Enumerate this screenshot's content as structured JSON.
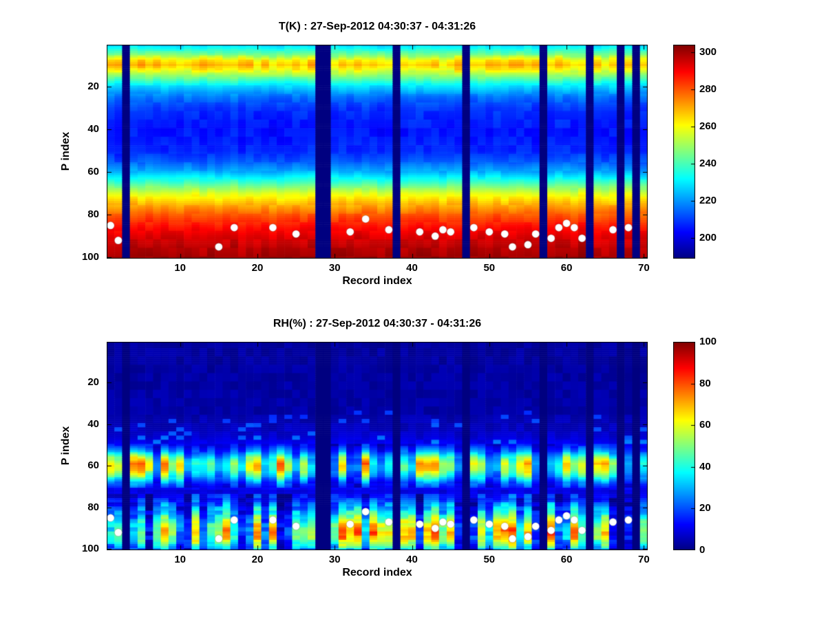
{
  "colors": {
    "background": "#ffffff",
    "text": "#000000",
    "missing_data": "#00008f",
    "dot": "#ffffff"
  },
  "chart_data": [
    {
      "type": "heatmap",
      "field": "temperature",
      "title": "T(K) : 27-Sep-2012 04:30:37 - 04:31:26",
      "xlabel": "Record index",
      "ylabel": "P index",
      "x_range": [
        1,
        70
      ],
      "y_range": [
        1,
        100
      ],
      "y_direction": "down",
      "x_ticks": [
        10,
        20,
        30,
        40,
        50,
        60,
        70
      ],
      "y_ticks": [
        20,
        40,
        60,
        80,
        100
      ],
      "colormap": "jet",
      "clim": [
        189,
        304
      ],
      "colorbar_ticks": [
        200,
        220,
        240,
        260,
        280,
        300
      ],
      "missing_records": [
        3,
        28,
        29,
        38,
        47,
        57,
        63,
        67,
        69
      ],
      "profile_p": [
        1,
        5,
        8,
        10,
        12,
        15,
        20,
        25,
        30,
        40,
        50,
        55,
        60,
        65,
        70,
        75,
        80,
        85,
        90,
        95,
        100
      ],
      "profile_values": [
        228,
        245,
        263,
        268,
        261,
        248,
        228,
        216,
        209,
        205,
        207,
        213,
        223,
        239,
        257,
        269,
        279,
        287,
        293,
        297,
        300
      ],
      "cell_noise_amp": 5,
      "column_noise_amp": 3,
      "band_variability": {
        "p_min": 6,
        "p_max": 13,
        "amp": 10
      },
      "dot_color": "#ffffff",
      "surface_dots": [
        [
          1,
          85
        ],
        [
          2,
          92
        ],
        [
          15,
          95
        ],
        [
          17,
          86
        ],
        [
          22,
          86
        ],
        [
          25,
          89
        ],
        [
          32,
          88
        ],
        [
          34,
          82
        ],
        [
          37,
          87
        ],
        [
          41,
          88
        ],
        [
          43,
          90
        ],
        [
          44,
          87
        ],
        [
          45,
          88
        ],
        [
          48,
          86
        ],
        [
          50,
          88
        ],
        [
          52,
          89
        ],
        [
          53,
          95
        ],
        [
          55,
          94
        ],
        [
          56,
          89
        ],
        [
          58,
          91
        ],
        [
          59,
          86
        ],
        [
          60,
          84
        ],
        [
          61,
          86
        ],
        [
          62,
          91
        ],
        [
          66,
          87
        ],
        [
          68,
          86
        ]
      ]
    },
    {
      "type": "heatmap",
      "field": "relative_humidity",
      "title": "RH(%) : 27-Sep-2012 04:30:37 - 04:31:26",
      "xlabel": "Record index",
      "ylabel": "P index",
      "x_range": [
        1,
        70
      ],
      "y_range": [
        1,
        100
      ],
      "y_direction": "down",
      "x_ticks": [
        10,
        20,
        30,
        40,
        50,
        60,
        70
      ],
      "y_ticks": [
        20,
        40,
        60,
        80,
        100
      ],
      "colormap": "jet",
      "clim": [
        0,
        100
      ],
      "colorbar_ticks": [
        0,
        20,
        40,
        60,
        80,
        100
      ],
      "missing_records": [
        3,
        28,
        29,
        38,
        47,
        57,
        63,
        67,
        69
      ],
      "profile_p": [
        1,
        35,
        42,
        46,
        50,
        53,
        56,
        59,
        62,
        65,
        68,
        72,
        76,
        80,
        84,
        88,
        92,
        95,
        98,
        100
      ],
      "profile_values": [
        3,
        4,
        6,
        8,
        12,
        22,
        38,
        48,
        45,
        34,
        20,
        9,
        12,
        20,
        28,
        38,
        44,
        40,
        30,
        22
      ],
      "cell_noise_amp": 4,
      "band_zone": {
        "p_min": 50,
        "p_max": 70,
        "factor_min": 0.35,
        "factor_max": 1.65,
        "cell_noise_amp": 8
      },
      "lower_zone": {
        "p_min": 74,
        "factor_min": 0.25,
        "factor_max": 1.95,
        "cell_noise_amp": 14
      },
      "speckle_zone": {
        "p_min": 34,
        "p_max": 49,
        "threshold": 0.9,
        "amp": 14
      },
      "dot_color": "#ffffff",
      "surface_dots": [
        [
          1,
          85
        ],
        [
          2,
          92
        ],
        [
          15,
          95
        ],
        [
          17,
          86
        ],
        [
          22,
          86
        ],
        [
          25,
          89
        ],
        [
          32,
          88
        ],
        [
          34,
          82
        ],
        [
          37,
          87
        ],
        [
          41,
          88
        ],
        [
          43,
          90
        ],
        [
          44,
          87
        ],
        [
          45,
          88
        ],
        [
          48,
          86
        ],
        [
          50,
          88
        ],
        [
          52,
          89
        ],
        [
          53,
          95
        ],
        [
          55,
          94
        ],
        [
          56,
          89
        ],
        [
          58,
          91
        ],
        [
          59,
          86
        ],
        [
          60,
          84
        ],
        [
          61,
          86
        ],
        [
          62,
          91
        ],
        [
          66,
          87
        ],
        [
          68,
          86
        ]
      ]
    }
  ]
}
